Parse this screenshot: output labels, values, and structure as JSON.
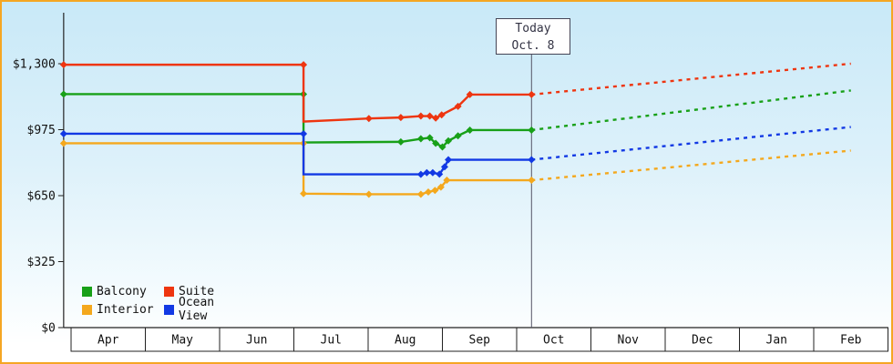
{
  "frame": {
    "border_color": "#f5a623",
    "background_top": "#c9e9f8",
    "background_bottom": "#ffffff"
  },
  "chart_data": {
    "type": "line",
    "x_axis": {
      "months": [
        "Apr",
        "May",
        "Jun",
        "Jul",
        "Aug",
        "Sep",
        "Oct",
        "Nov",
        "Dec",
        "Jan",
        "Feb"
      ]
    },
    "y_axis": {
      "min": 0,
      "max": 1300,
      "ticks": [
        {
          "label": "$1,300",
          "value": 1300
        },
        {
          "label": "$975",
          "value": 975
        },
        {
          "label": "$650",
          "value": 650
        },
        {
          "label": "$325",
          "value": 325
        },
        {
          "label": "$0",
          "value": 0
        }
      ]
    },
    "today": {
      "line1": "Today",
      "line2": "Oct. 8",
      "month_position": 6.2
    },
    "series": [
      {
        "id": "balcony",
        "name": "Balcony",
        "color": "#18a018",
        "solid": [
          [
            -0.1,
            1150,
            1
          ],
          [
            3.13,
            1150,
            1
          ],
          [
            3.13,
            912,
            0
          ],
          [
            4.44,
            915,
            1
          ],
          [
            4.71,
            930,
            1
          ],
          [
            4.83,
            935,
            1
          ],
          [
            4.91,
            908,
            1
          ],
          [
            5.0,
            890,
            1
          ],
          [
            5.08,
            920,
            1
          ],
          [
            5.21,
            945,
            1
          ],
          [
            5.37,
            973,
            1
          ],
          [
            6.2,
            973,
            1
          ]
        ],
        "projected": [
          [
            6.2,
            973
          ],
          [
            10.5,
            1168
          ]
        ]
      },
      {
        "id": "suite",
        "name": "Suite",
        "color": "#ee3510",
        "solid": [
          [
            -0.1,
            1295,
            1
          ],
          [
            3.13,
            1295,
            1
          ],
          [
            3.13,
            1015,
            0
          ],
          [
            4.01,
            1030,
            1
          ],
          [
            4.44,
            1035,
            1
          ],
          [
            4.71,
            1042,
            1
          ],
          [
            4.83,
            1042,
            1
          ],
          [
            4.91,
            1032,
            1
          ],
          [
            4.99,
            1048,
            1
          ],
          [
            5.21,
            1090,
            1
          ],
          [
            5.37,
            1148,
            1
          ],
          [
            6.2,
            1148,
            1
          ]
        ],
        "projected": [
          [
            6.2,
            1148
          ],
          [
            10.5,
            1300
          ]
        ]
      },
      {
        "id": "interior",
        "name": "Interior",
        "color": "#f4a81d",
        "solid": [
          [
            -0.1,
            908,
            1
          ],
          [
            3.13,
            908,
            1
          ],
          [
            3.13,
            660,
            1
          ],
          [
            4.01,
            657,
            1
          ],
          [
            4.71,
            657,
            1
          ],
          [
            4.81,
            668,
            1
          ],
          [
            4.9,
            676,
            1
          ],
          [
            4.98,
            692,
            1
          ],
          [
            5.06,
            726,
            1
          ],
          [
            6.2,
            726,
            1
          ]
        ],
        "projected": [
          [
            6.2,
            726
          ],
          [
            10.5,
            872
          ]
        ]
      },
      {
        "id": "ocean-view",
        "name": "Ocean View",
        "color": "#1239e4",
        "solid": [
          [
            -0.1,
            955,
            1
          ],
          [
            3.13,
            955,
            1
          ],
          [
            3.13,
            755,
            0
          ],
          [
            4.71,
            755,
            1
          ],
          [
            4.79,
            763,
            1
          ],
          [
            4.87,
            763,
            1
          ],
          [
            4.96,
            756,
            1
          ],
          [
            5.03,
            792,
            1
          ],
          [
            5.08,
            827,
            1
          ],
          [
            6.2,
            827,
            1
          ]
        ],
        "projected": [
          [
            6.2,
            827
          ],
          [
            10.5,
            988
          ]
        ]
      }
    ],
    "legend": {
      "items": [
        "Balcony",
        "Suite",
        "Interior",
        "Ocean View"
      ],
      "position": "bottom-left"
    }
  }
}
